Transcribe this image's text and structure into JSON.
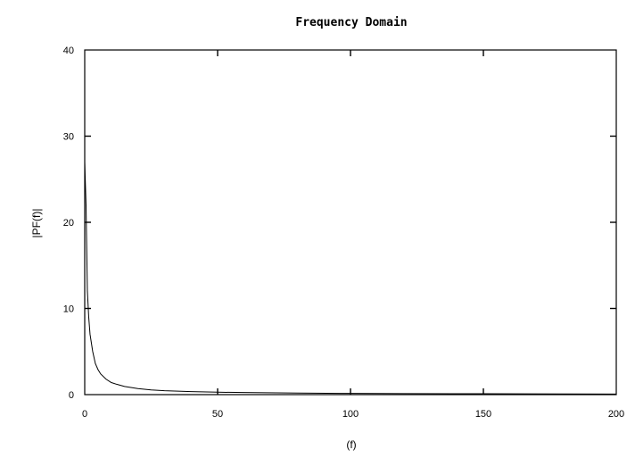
{
  "chart_data": {
    "type": "line",
    "title": "Frequency Domain",
    "xlabel": "(f)",
    "ylabel": "|PF(f)|",
    "xlim": [
      0,
      200
    ],
    "ylim": [
      0,
      40
    ],
    "x_ticks": [
      0,
      50,
      100,
      150,
      200
    ],
    "y_ticks": [
      0,
      10,
      20,
      30,
      40
    ],
    "x_tick_labels": [
      "0",
      "50",
      "100",
      "150",
      "200"
    ],
    "y_tick_labels": [
      "0",
      "10",
      "20",
      "30",
      "40"
    ],
    "grid": false,
    "series": [
      {
        "color": "#000000",
        "x": [
          0,
          0.5,
          1,
          1.5,
          2,
          3,
          4,
          5,
          6,
          8,
          10,
          12,
          15,
          20,
          25,
          30,
          40,
          50,
          60,
          80,
          100,
          120,
          150,
          180,
          200
        ],
        "y": [
          27,
          22,
          12,
          9,
          7,
          5,
          3.6,
          2.9,
          2.4,
          1.8,
          1.4,
          1.2,
          0.95,
          0.7,
          0.55,
          0.45,
          0.35,
          0.28,
          0.24,
          0.18,
          0.14,
          0.12,
          0.1,
          0.08,
          0.07
        ]
      }
    ]
  }
}
